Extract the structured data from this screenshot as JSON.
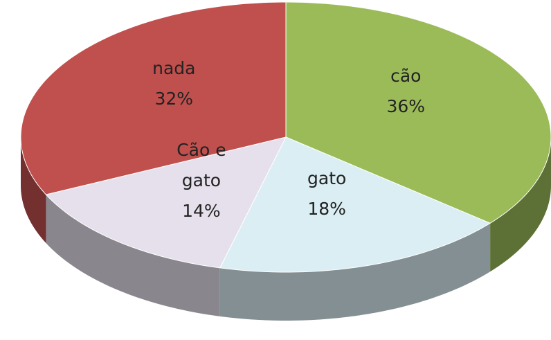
{
  "chart_data": {
    "type": "pie",
    "categories": [
      "cão",
      "gato",
      "Cão e gato",
      "nada"
    ],
    "values": [
      36,
      18,
      14,
      32
    ],
    "value_labels": [
      "36%",
      "18%",
      "14%",
      "32%"
    ],
    "colors": [
      "#9bbb59",
      "#dbeef4",
      "#e6e0ec",
      "#c0504d"
    ]
  }
}
